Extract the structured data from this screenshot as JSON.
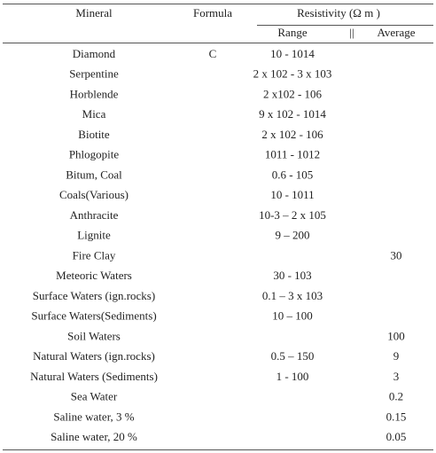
{
  "table": {
    "header": [
      "Mineral",
      "Formula",
      "Resistivity (Ω m )"
    ],
    "subheader": [
      "Range",
      "||",
      "Average"
    ],
    "rows": [
      {
        "mineral": "Diamond",
        "formula": "C",
        "range": "10 - 1014"
      },
      {
        "mineral": "Serpentine",
        "range": "2 x 102 - 3 x 103"
      },
      {
        "mineral": "Horblende",
        "range": "2 x102 - 106"
      },
      {
        "mineral": "Mica",
        "range": "9 x 102 - 1014"
      },
      {
        "mineral": "Biotite",
        "range": "2 x 102 - 106"
      },
      {
        "mineral": "Phlogopite",
        "range": "1011 - 1012"
      },
      {
        "mineral": "Bitum, Coal",
        "range": "0.6 - 105"
      },
      {
        "mineral": "Coals(Various)",
        "range": "10 - 1011"
      },
      {
        "mineral": "Anthracite",
        "range": "10-3 – 2 x 105"
      },
      {
        "mineral": "Lignite",
        "range": "9 – 200"
      },
      {
        "mineral": "Fire Clay",
        "average": "30"
      },
      {
        "mineral": "Meteoric Waters",
        "range": "30 - 103"
      },
      {
        "mineral": "Surface Waters (ign.rocks)",
        "range": "0.1 – 3 x 103"
      },
      {
        "mineral": "Surface Waters(Sediments)",
        "range": "10 – 100"
      },
      {
        "mineral": "Soil Waters",
        "average": "100"
      },
      {
        "mineral": "Natural Waters (ign.rocks)",
        "range": "0.5 – 150",
        "average": "9"
      },
      {
        "mineral": "Natural Waters (Sediments)",
        "range": "1 -   100",
        "average": "3"
      },
      {
        "mineral": "Sea Water",
        "average": "0.2"
      },
      {
        "mineral": "Saline water, 3 %",
        "average": "0.15"
      },
      {
        "mineral": "Saline water, 20 %",
        "average": "0.05"
      }
    ]
  }
}
